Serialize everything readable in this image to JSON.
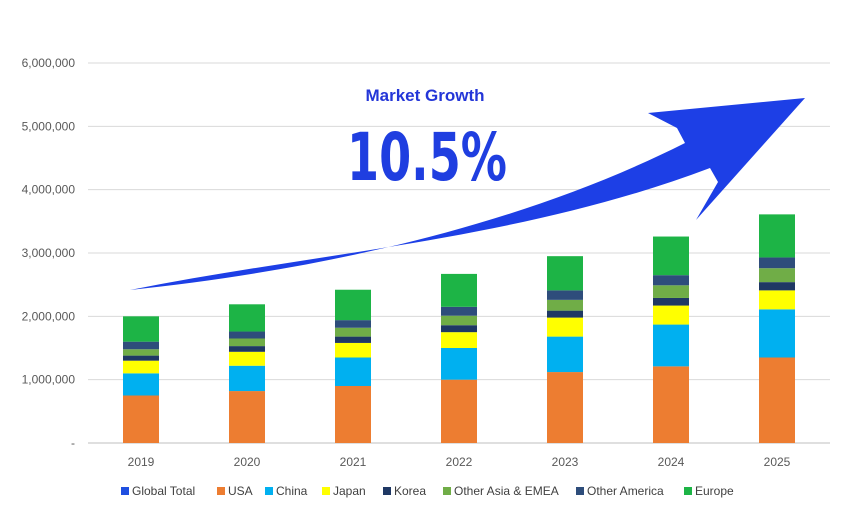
{
  "chart_data": {
    "type": "bar",
    "stacked": true,
    "title": "",
    "xlabel": "",
    "ylabel": "",
    "ylim": [
      0,
      6000000
    ],
    "y_ticks": [
      "-",
      "1,000,000",
      "2,000,000",
      "3,000,000",
      "4,000,000",
      "5,000,000",
      "6,000,000"
    ],
    "grid": true,
    "legend_position": "bottom",
    "categories": [
      "2019",
      "2020",
      "2021",
      "2022",
      "2023",
      "2024",
      "2025"
    ],
    "series": [
      {
        "name": "Global Total",
        "color": "#1f4fe0",
        "values": [
          0,
          0,
          0,
          0,
          0,
          0,
          0
        ]
      },
      {
        "name": "USA",
        "color": "#ed7d31",
        "values": [
          750000,
          820000,
          900000,
          1000000,
          1120000,
          1210000,
          1350000
        ]
      },
      {
        "name": "China",
        "color": "#00b0f0",
        "values": [
          350000,
          400000,
          450000,
          500000,
          560000,
          660000,
          760000
        ]
      },
      {
        "name": "Japan",
        "color": "#ffff00",
        "values": [
          200000,
          220000,
          230000,
          250000,
          300000,
          300000,
          300000
        ]
      },
      {
        "name": "Korea",
        "color": "#1f3864",
        "values": [
          80000,
          90000,
          100000,
          110000,
          110000,
          120000,
          130000
        ]
      },
      {
        "name": "Other Asia & EMEA",
        "color": "#70ad47",
        "values": [
          100000,
          120000,
          140000,
          150000,
          170000,
          200000,
          220000
        ]
      },
      {
        "name": "Other America",
        "color": "#2e4d7b",
        "values": [
          120000,
          110000,
          120000,
          140000,
          150000,
          160000,
          170000
        ]
      },
      {
        "name": "Europe",
        "color": "#1db446",
        "values": [
          400000,
          430000,
          480000,
          520000,
          540000,
          610000,
          680000
        ]
      }
    ],
    "annotations": {
      "subtitle": "Market Growth",
      "growth": "10.5%"
    }
  }
}
